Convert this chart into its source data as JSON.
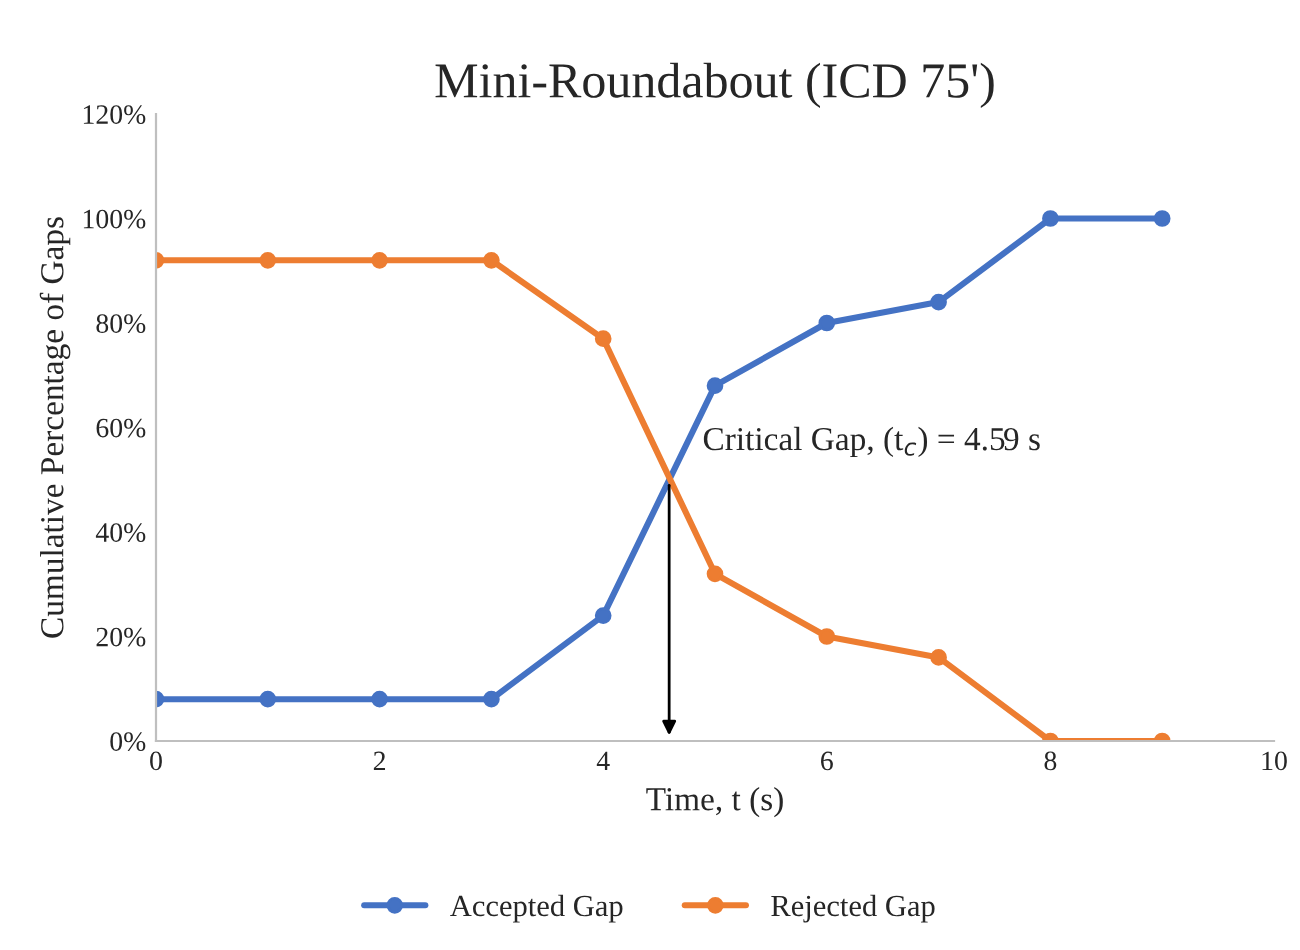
{
  "chart_data": {
    "type": "line",
    "title": "Mini-Roundabout (ICD 75')",
    "xlabel": "Time, t (s)",
    "ylabel": "Cumulative Percentage of Gaps",
    "x": [
      0,
      1,
      2,
      3,
      4,
      5,
      6,
      7,
      8,
      9
    ],
    "series": [
      {
        "name": "Accepted Gap",
        "color": "#4472c4",
        "values": [
          8,
          8,
          8,
          8,
          24,
          68,
          80,
          84,
          100,
          100
        ]
      },
      {
        "name": "Rejected Gap",
        "color": "#ed7d31",
        "values": [
          92,
          92,
          92,
          92,
          77,
          32,
          20,
          16,
          0,
          0
        ]
      }
    ],
    "xlim": [
      0,
      10
    ],
    "xticks": [
      0,
      2,
      4,
      6,
      8,
      10
    ],
    "ylim": [
      0,
      120
    ],
    "yticks": [
      {
        "value": 0,
        "label": "0%"
      },
      {
        "value": 20,
        "label": "20%"
      },
      {
        "value": 40,
        "label": "40%"
      },
      {
        "value": 60,
        "label": "60%"
      },
      {
        "value": 80,
        "label": "80%"
      },
      {
        "value": 100,
        "label": "100%"
      },
      {
        "value": 120,
        "label": "120%"
      }
    ],
    "annotations": [
      {
        "text": "Critical Gap, (t$_{c}$) = 4.59 s",
        "x": 4.59,
        "y": 50
      }
    ],
    "marker": "circle",
    "line_style": "solid",
    "grid": false,
    "legend": "bottom"
  }
}
